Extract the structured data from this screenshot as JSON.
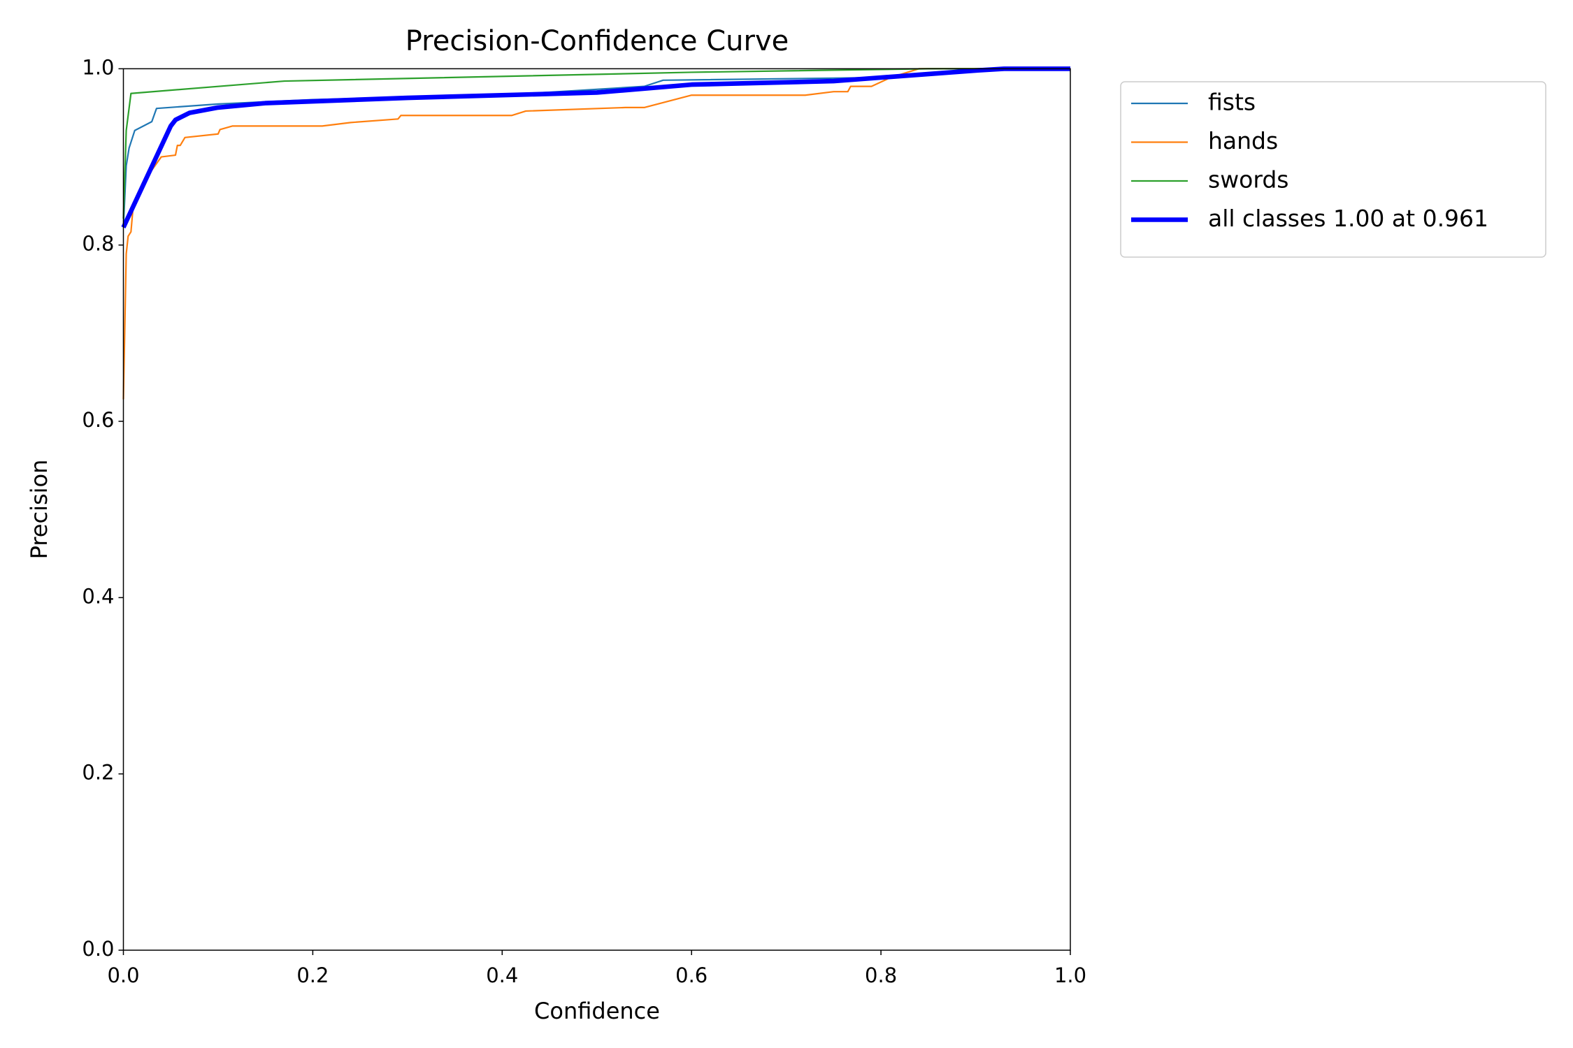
{
  "chart_data": {
    "type": "line",
    "title": "Precision-Confidence Curve",
    "x_label": "Confidence",
    "y_label": "Precision",
    "xlim": [
      0,
      1
    ],
    "ylim": [
      0,
      1
    ],
    "xticks": [
      {
        "value": 0,
        "label": "0.0"
      },
      0.2,
      0.4,
      0.6,
      0.8,
      {
        "value": 1,
        "label": "1.0"
      }
    ],
    "yticks": [
      {
        "value": 0,
        "label": "0.0"
      },
      0.2,
      0.4,
      0.6,
      0.8,
      {
        "value": 1,
        "label": "1.0"
      }
    ],
    "legend": "outside upper right",
    "grid": false,
    "series": [
      {
        "name": "fists",
        "color": "#1f77b4",
        "linewidth": 1,
        "x": [
          0,
          0.003,
          0.006,
          0.012,
          0.03,
          0.035,
          0.1,
          0.2,
          0.4,
          0.55,
          0.57,
          0.8,
          0.87,
          0.9,
          1.0
        ],
        "values": [
          0.82,
          0.89,
          0.91,
          0.93,
          0.94,
          0.955,
          0.96,
          0.965,
          0.97,
          0.98,
          0.987,
          0.99,
          0.995,
          1.0,
          1.0
        ]
      },
      {
        "name": "hands",
        "color": "#ff7f0e",
        "linewidth": 1,
        "x": [
          0,
          0.003,
          0.005,
          0.008,
          0.01,
          0.02,
          0.04,
          0.055,
          0.057,
          0.06,
          0.065,
          0.1,
          0.102,
          0.115,
          0.21,
          0.24,
          0.29,
          0.293,
          0.41,
          0.425,
          0.53,
          0.55,
          0.6,
          0.72,
          0.75,
          0.765,
          0.768,
          0.79,
          0.8,
          0.81,
          0.84,
          1.0
        ],
        "values": [
          0.625,
          0.79,
          0.81,
          0.815,
          0.84,
          0.87,
          0.9,
          0.902,
          0.913,
          0.913,
          0.922,
          0.926,
          0.931,
          0.935,
          0.935,
          0.939,
          0.943,
          0.947,
          0.947,
          0.952,
          0.956,
          0.956,
          0.97,
          0.97,
          0.974,
          0.974,
          0.98,
          0.98,
          0.985,
          0.99,
          1.0,
          1.0
        ]
      },
      {
        "name": "swords",
        "color": "#2ca02c",
        "linewidth": 1,
        "x": [
          0,
          0.003,
          0.008,
          0.17,
          0.6,
          0.85,
          1.0
        ],
        "values": [
          0.83,
          0.93,
          0.972,
          0.986,
          0.996,
          1.0,
          1.0
        ]
      },
      {
        "name": "all classes 1.00 at 0.961",
        "color": "#0000ff",
        "linewidth": 3,
        "x": [
          0,
          0.05,
          0.055,
          0.07,
          0.1,
          0.15,
          0.3,
          0.5,
          0.6,
          0.75,
          0.8,
          0.9,
          0.93,
          1.0
        ],
        "values": [
          0.82,
          0.935,
          0.942,
          0.95,
          0.956,
          0.961,
          0.967,
          0.973,
          0.982,
          0.986,
          0.99,
          0.998,
          1.0,
          1.0
        ]
      }
    ]
  }
}
